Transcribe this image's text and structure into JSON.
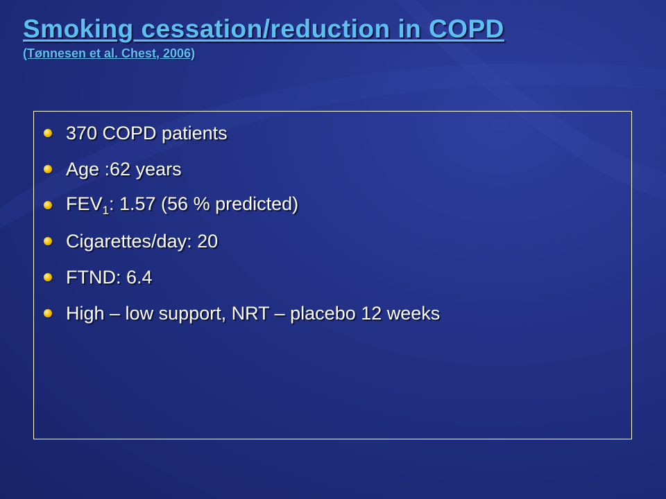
{
  "slide": {
    "title": "Smoking cessation/reduction in COPD",
    "subtitle": "(Tønnesen et al. Chest, 2006)",
    "bullets": [
      "370 COPD patients",
      "Age :62 years",
      "Cigarettes/day: 20",
      "FTND: 6.4",
      "High – low support, NRT – placebo 12 weeks"
    ],
    "fev": {
      "prefix": "FEV",
      "subscript": "1",
      "suffix": ": 1.57 (56 % predicted)"
    }
  },
  "colors": {
    "background": "#1d2a78",
    "title": "#5cc1f0",
    "text": "#ffffff",
    "bullet": "#f5c400",
    "border": "#ffffff"
  }
}
